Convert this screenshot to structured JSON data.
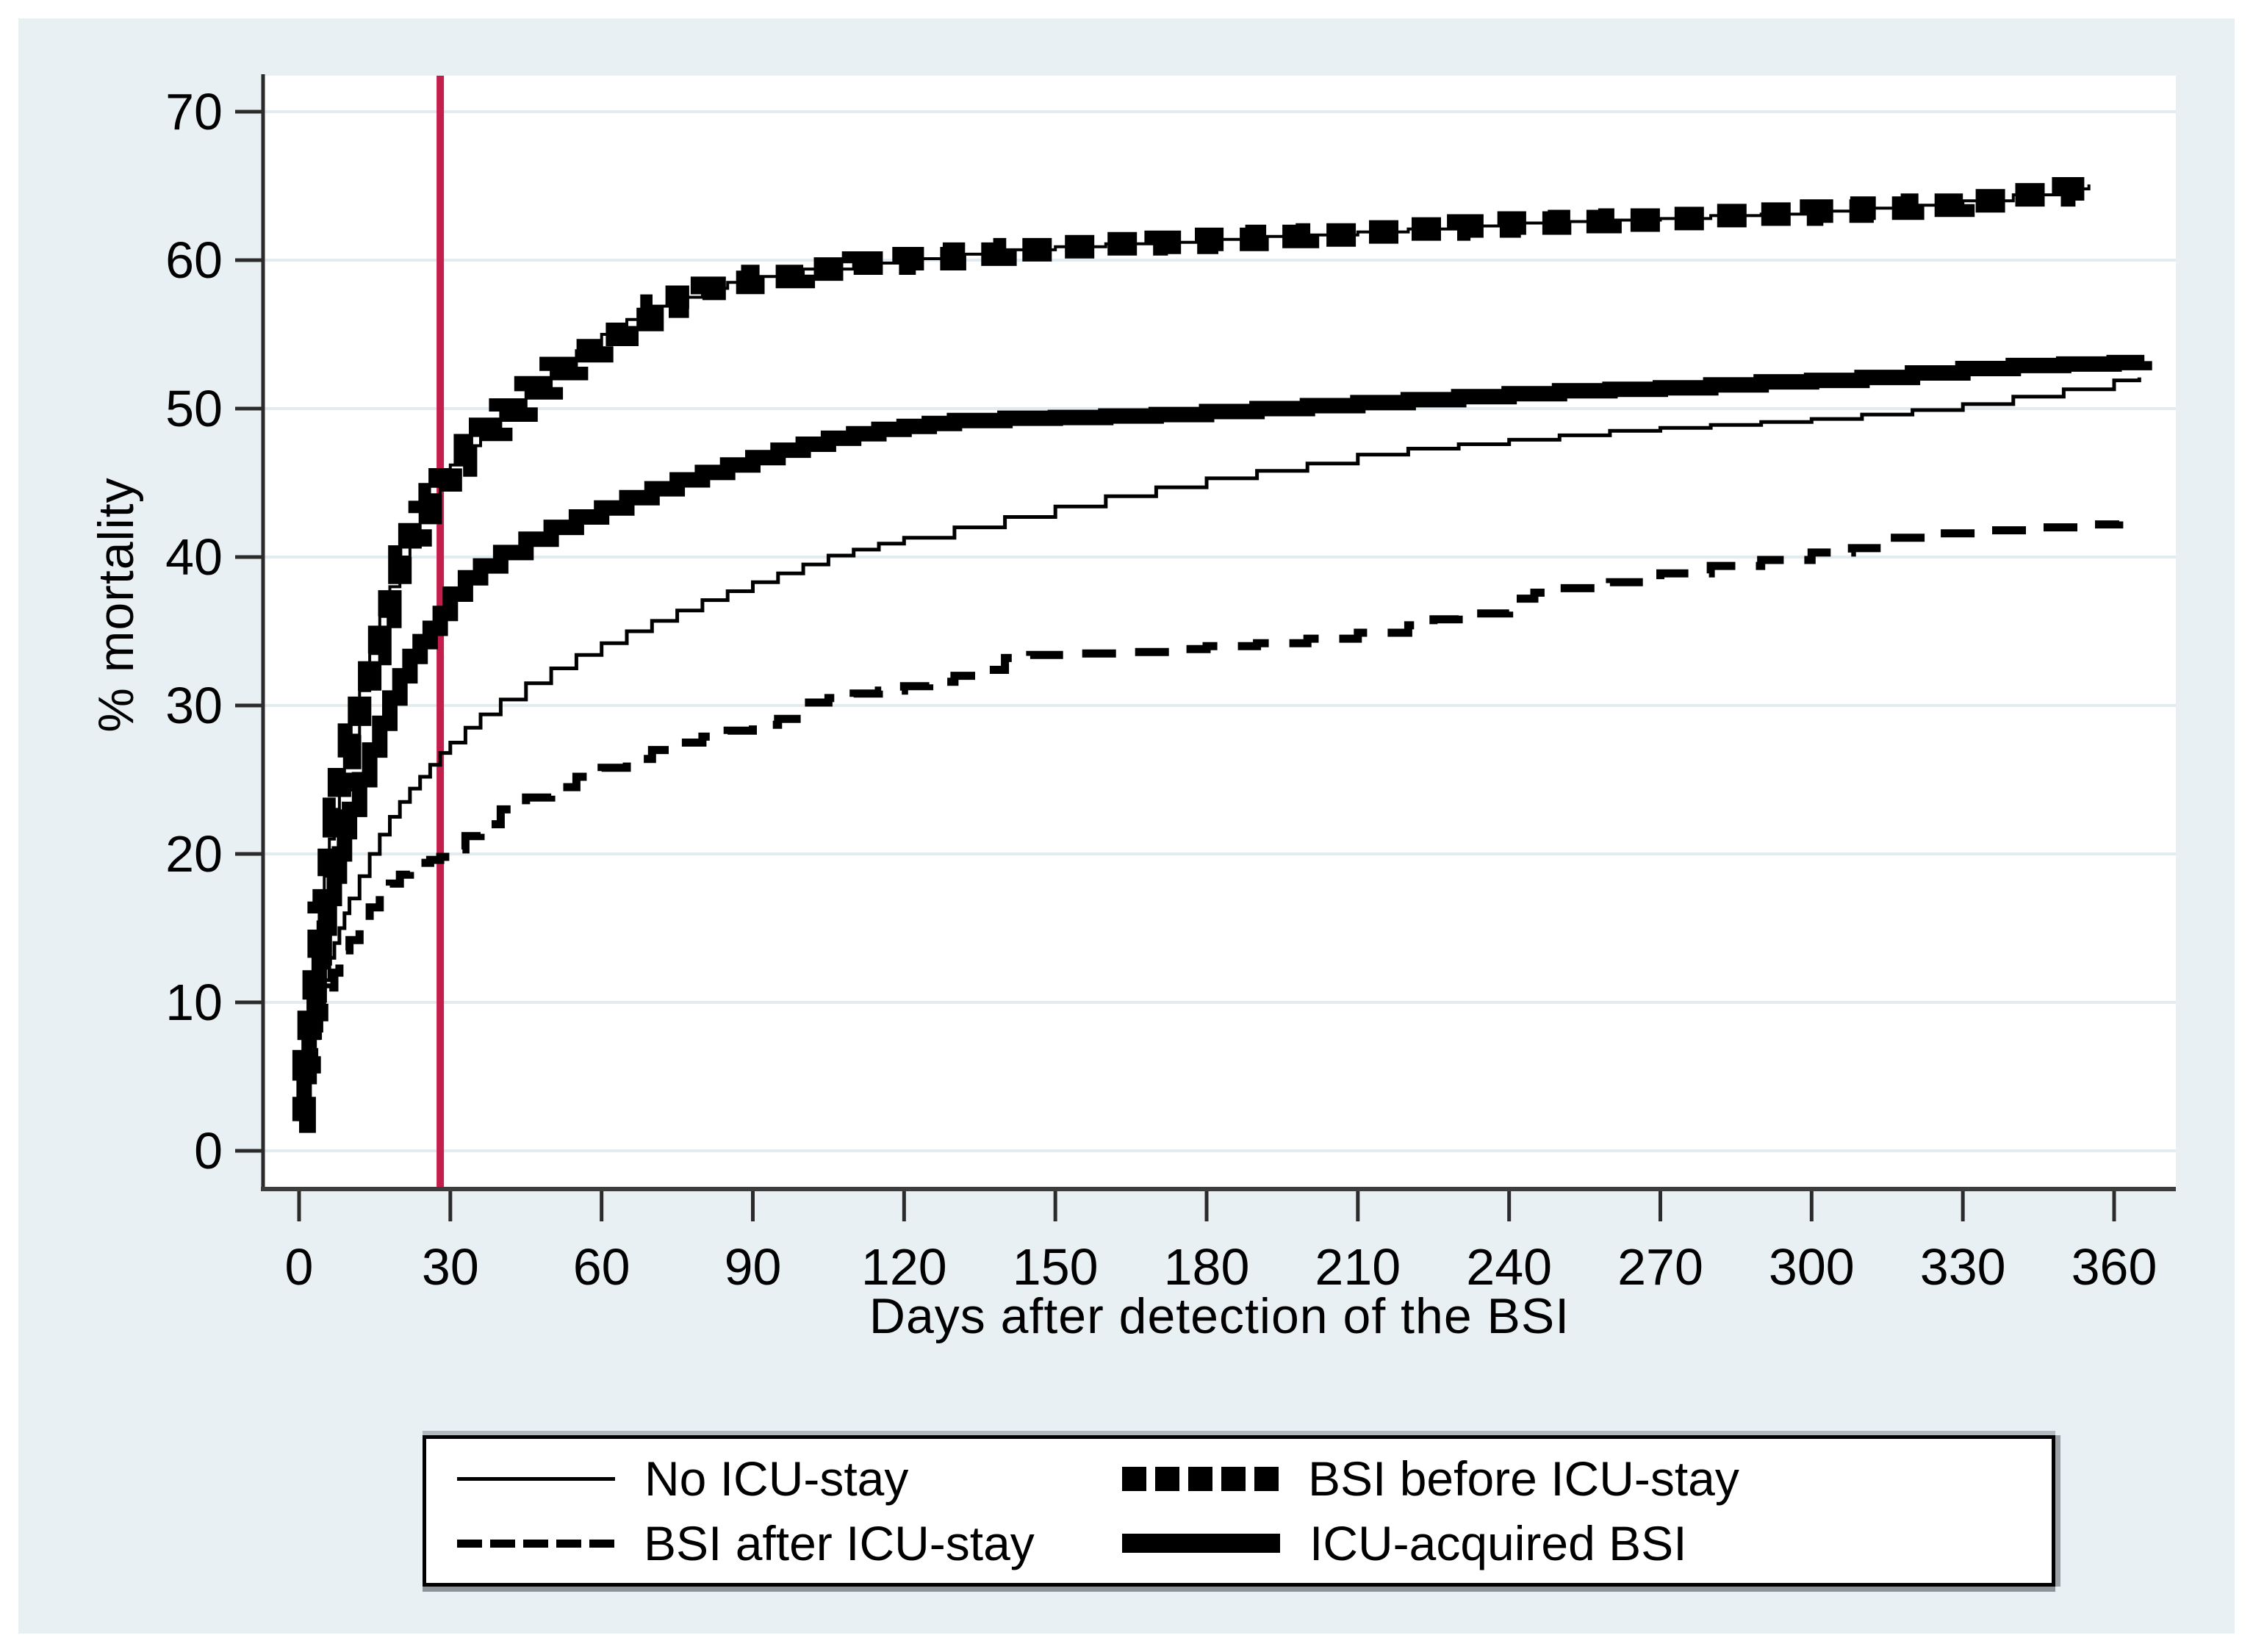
{
  "figure": {
    "background_color": "#ffffff",
    "panel_color": "#e9f0f3",
    "plot_background": "#ffffff",
    "gridline_color": "#e2ecf0",
    "axis_color": "#3d3d3d",
    "curve_color": "#000000"
  },
  "y_axis": {
    "label": "% mortality",
    "ticks": [
      0,
      10,
      20,
      30,
      40,
      50,
      60,
      70
    ]
  },
  "x_axis": {
    "label": "Days after detection of the BSI",
    "ticks": [
      0,
      30,
      60,
      90,
      120,
      150,
      180,
      210,
      240,
      270,
      300,
      330,
      360
    ]
  },
  "reference_line": {
    "day": 28,
    "color": "#c41f4c"
  },
  "legend": {
    "items": [
      {
        "label": "No ICU-stay",
        "style": "thin-solid"
      },
      {
        "label": "BSI before ICU-stay",
        "style": "square-dash"
      },
      {
        "label": "BSI after ICU-stay",
        "style": "dash"
      },
      {
        "label": "ICU-acquired BSI",
        "style": "thick-solid"
      }
    ]
  },
  "chart_data": {
    "type": "line",
    "title": "",
    "xlabel": "Days after detection of the BSI",
    "ylabel": "% mortality",
    "xlim": [
      0,
      372
    ],
    "ylim": [
      0,
      72
    ],
    "grid": "horizontal",
    "legend_position": "bottom",
    "reference_line_x": 28,
    "series": [
      {
        "name": "No ICU-stay",
        "style": "thin-solid",
        "points": [
          [
            0,
            2
          ],
          [
            1,
            4.5
          ],
          [
            2,
            6.5
          ],
          [
            3,
            8.5
          ],
          [
            4,
            10
          ],
          [
            5,
            11.5
          ],
          [
            6,
            13
          ],
          [
            7,
            14
          ],
          [
            8,
            15
          ],
          [
            9,
            16
          ],
          [
            10,
            17
          ],
          [
            12,
            18.5
          ],
          [
            14,
            20
          ],
          [
            16,
            21.3
          ],
          [
            18,
            22.5
          ],
          [
            20,
            23.5
          ],
          [
            22,
            24.4
          ],
          [
            24,
            25.2
          ],
          [
            26,
            26
          ],
          [
            28,
            26.8
          ],
          [
            30,
            27.5
          ],
          [
            33,
            28.5
          ],
          [
            36,
            29.4
          ],
          [
            40,
            30.4
          ],
          [
            45,
            31.5
          ],
          [
            50,
            32.5
          ],
          [
            55,
            33.4
          ],
          [
            60,
            34.2
          ],
          [
            65,
            35
          ],
          [
            70,
            35.7
          ],
          [
            75,
            36.4
          ],
          [
            80,
            37.1
          ],
          [
            85,
            37.7
          ],
          [
            90,
            38.3
          ],
          [
            95,
            38.9
          ],
          [
            100,
            39.5
          ],
          [
            105,
            40.1
          ],
          [
            110,
            40.5
          ],
          [
            115,
            40.9
          ],
          [
            120,
            41.3
          ],
          [
            130,
            42
          ],
          [
            140,
            42.7
          ],
          [
            150,
            43.4
          ],
          [
            160,
            44.1
          ],
          [
            170,
            44.7
          ],
          [
            180,
            45.3
          ],
          [
            190,
            45.8
          ],
          [
            200,
            46.3
          ],
          [
            210,
            46.9
          ],
          [
            220,
            47.3
          ],
          [
            230,
            47.6
          ],
          [
            240,
            47.9
          ],
          [
            250,
            48.2
          ],
          [
            260,
            48.5
          ],
          [
            270,
            48.7
          ],
          [
            280,
            48.9
          ],
          [
            290,
            49.1
          ],
          [
            300,
            49.3
          ],
          [
            310,
            49.6
          ],
          [
            320,
            49.9
          ],
          [
            330,
            50.3
          ],
          [
            340,
            50.8
          ],
          [
            350,
            51.3
          ],
          [
            360,
            51.9
          ],
          [
            365,
            52.1
          ]
        ]
      },
      {
        "name": "BSI before ICU-stay",
        "style": "square-dash",
        "points": [
          [
            0,
            2
          ],
          [
            1,
            6
          ],
          [
            2,
            9.5
          ],
          [
            3,
            13
          ],
          [
            4,
            16
          ],
          [
            5,
            18.5
          ],
          [
            6,
            21
          ],
          [
            7,
            23
          ],
          [
            8,
            25
          ],
          [
            9,
            26.5
          ],
          [
            10,
            28
          ],
          [
            12,
            31
          ],
          [
            14,
            33.5
          ],
          [
            16,
            36
          ],
          [
            18,
            38
          ],
          [
            20,
            40
          ],
          [
            22,
            41.5
          ],
          [
            24,
            43
          ],
          [
            26,
            44.2
          ],
          [
            28,
            45.2
          ],
          [
            30,
            46.2
          ],
          [
            33,
            47.5
          ],
          [
            36,
            48.6
          ],
          [
            40,
            49.9
          ],
          [
            45,
            51.4
          ],
          [
            50,
            52.7
          ],
          [
            55,
            53.9
          ],
          [
            60,
            55
          ],
          [
            65,
            56
          ],
          [
            70,
            56.9
          ],
          [
            75,
            57.5
          ],
          [
            80,
            58.1
          ],
          [
            85,
            58.5
          ],
          [
            90,
            58.9
          ],
          [
            100,
            59.4
          ],
          [
            110,
            59.8
          ],
          [
            120,
            60.1
          ],
          [
            130,
            60.4
          ],
          [
            140,
            60.7
          ],
          [
            150,
            60.9
          ],
          [
            160,
            61.1
          ],
          [
            170,
            61.2
          ],
          [
            180,
            61.4
          ],
          [
            190,
            61.6
          ],
          [
            200,
            61.7
          ],
          [
            210,
            61.9
          ],
          [
            220,
            62.1
          ],
          [
            230,
            62.3
          ],
          [
            240,
            62.5
          ],
          [
            250,
            62.6
          ],
          [
            260,
            62.7
          ],
          [
            270,
            62.8
          ],
          [
            280,
            63
          ],
          [
            290,
            63.1
          ],
          [
            300,
            63.3
          ],
          [
            310,
            63.5
          ],
          [
            320,
            63.7
          ],
          [
            330,
            64
          ],
          [
            340,
            64.4
          ],
          [
            350,
            64.8
          ],
          [
            355,
            65.1
          ]
        ]
      },
      {
        "name": "BSI after ICU-stay",
        "style": "dash",
        "points": [
          [
            0,
            2
          ],
          [
            1,
            4
          ],
          [
            2,
            6
          ],
          [
            3,
            7.5
          ],
          [
            4,
            9
          ],
          [
            5,
            10
          ],
          [
            6,
            11
          ],
          [
            7,
            12
          ],
          [
            8,
            12.8
          ],
          [
            9,
            13.5
          ],
          [
            10,
            14.2
          ],
          [
            12,
            15.4
          ],
          [
            14,
            16.4
          ],
          [
            16,
            17.3
          ],
          [
            18,
            18
          ],
          [
            20,
            18.6
          ],
          [
            22,
            19.1
          ],
          [
            24,
            19.4
          ],
          [
            26,
            19.6
          ],
          [
            28,
            19.8
          ],
          [
            30,
            20.3
          ],
          [
            33,
            21.2
          ],
          [
            36,
            22
          ],
          [
            40,
            23
          ],
          [
            45,
            23.8
          ],
          [
            50,
            24.5
          ],
          [
            55,
            25.2
          ],
          [
            60,
            25.8
          ],
          [
            65,
            26.4
          ],
          [
            70,
            27
          ],
          [
            75,
            27.5
          ],
          [
            80,
            27.9
          ],
          [
            85,
            28.3
          ],
          [
            90,
            28.7
          ],
          [
            95,
            29.1
          ],
          [
            100,
            30.2
          ],
          [
            105,
            30.5
          ],
          [
            110,
            30.8
          ],
          [
            115,
            31
          ],
          [
            120,
            31.3
          ],
          [
            125,
            31.6
          ],
          [
            130,
            32
          ],
          [
            135,
            32.4
          ],
          [
            140,
            33.2
          ],
          [
            145,
            33.4
          ],
          [
            155,
            33.5
          ],
          [
            165,
            33.6
          ],
          [
            175,
            33.8
          ],
          [
            180,
            34
          ],
          [
            190,
            34.2
          ],
          [
            200,
            34.5
          ],
          [
            210,
            34.9
          ],
          [
            220,
            35.4
          ],
          [
            225,
            35.8
          ],
          [
            230,
            36.2
          ],
          [
            240,
            37.2
          ],
          [
            245,
            37.6
          ],
          [
            250,
            37.9
          ],
          [
            260,
            38.3
          ],
          [
            270,
            38.9
          ],
          [
            280,
            39.4
          ],
          [
            290,
            39.8
          ],
          [
            300,
            40.3
          ],
          [
            308,
            40.6
          ],
          [
            315,
            41.3
          ],
          [
            325,
            41.6
          ],
          [
            335,
            41.8
          ],
          [
            345,
            42
          ],
          [
            355,
            42.2
          ],
          [
            361,
            42.4
          ]
        ]
      },
      {
        "name": "ICU-acquired BSI",
        "style": "thick-solid",
        "points": [
          [
            0,
            2
          ],
          [
            1,
            5
          ],
          [
            2,
            8
          ],
          [
            3,
            10.5
          ],
          [
            4,
            13
          ],
          [
            5,
            15
          ],
          [
            6,
            17
          ],
          [
            7,
            18.5
          ],
          [
            8,
            20
          ],
          [
            9,
            21.5
          ],
          [
            10,
            23
          ],
          [
            12,
            25
          ],
          [
            14,
            27
          ],
          [
            16,
            28.8
          ],
          [
            18,
            30.5
          ],
          [
            20,
            32
          ],
          [
            22,
            33.3
          ],
          [
            24,
            34.3
          ],
          [
            26,
            35.2
          ],
          [
            28,
            36.2
          ],
          [
            30,
            37.5
          ],
          [
            33,
            38.6
          ],
          [
            36,
            39.4
          ],
          [
            40,
            40.3
          ],
          [
            45,
            41.2
          ],
          [
            50,
            42
          ],
          [
            55,
            42.7
          ],
          [
            60,
            43.3
          ],
          [
            65,
            44
          ],
          [
            70,
            44.6
          ],
          [
            75,
            45.2
          ],
          [
            80,
            45.7
          ],
          [
            85,
            46.2
          ],
          [
            90,
            46.7
          ],
          [
            95,
            47.2
          ],
          [
            100,
            47.6
          ],
          [
            105,
            48
          ],
          [
            110,
            48.3
          ],
          [
            115,
            48.6
          ],
          [
            120,
            48.8
          ],
          [
            125,
            49
          ],
          [
            130,
            49.2
          ],
          [
            140,
            49.35
          ],
          [
            150,
            49.4
          ],
          [
            160,
            49.5
          ],
          [
            170,
            49.6
          ],
          [
            180,
            49.8
          ],
          [
            190,
            50
          ],
          [
            200,
            50.2
          ],
          [
            210,
            50.4
          ],
          [
            220,
            50.6
          ],
          [
            230,
            50.8
          ],
          [
            240,
            51
          ],
          [
            250,
            51.2
          ],
          [
            260,
            51.3
          ],
          [
            270,
            51.4
          ],
          [
            280,
            51.6
          ],
          [
            290,
            51.8
          ],
          [
            300,
            51.9
          ],
          [
            310,
            52.1
          ],
          [
            320,
            52.4
          ],
          [
            330,
            52.7
          ],
          [
            340,
            52.9
          ],
          [
            350,
            53
          ],
          [
            360,
            53.1
          ],
          [
            366,
            53.2
          ]
        ]
      }
    ]
  }
}
